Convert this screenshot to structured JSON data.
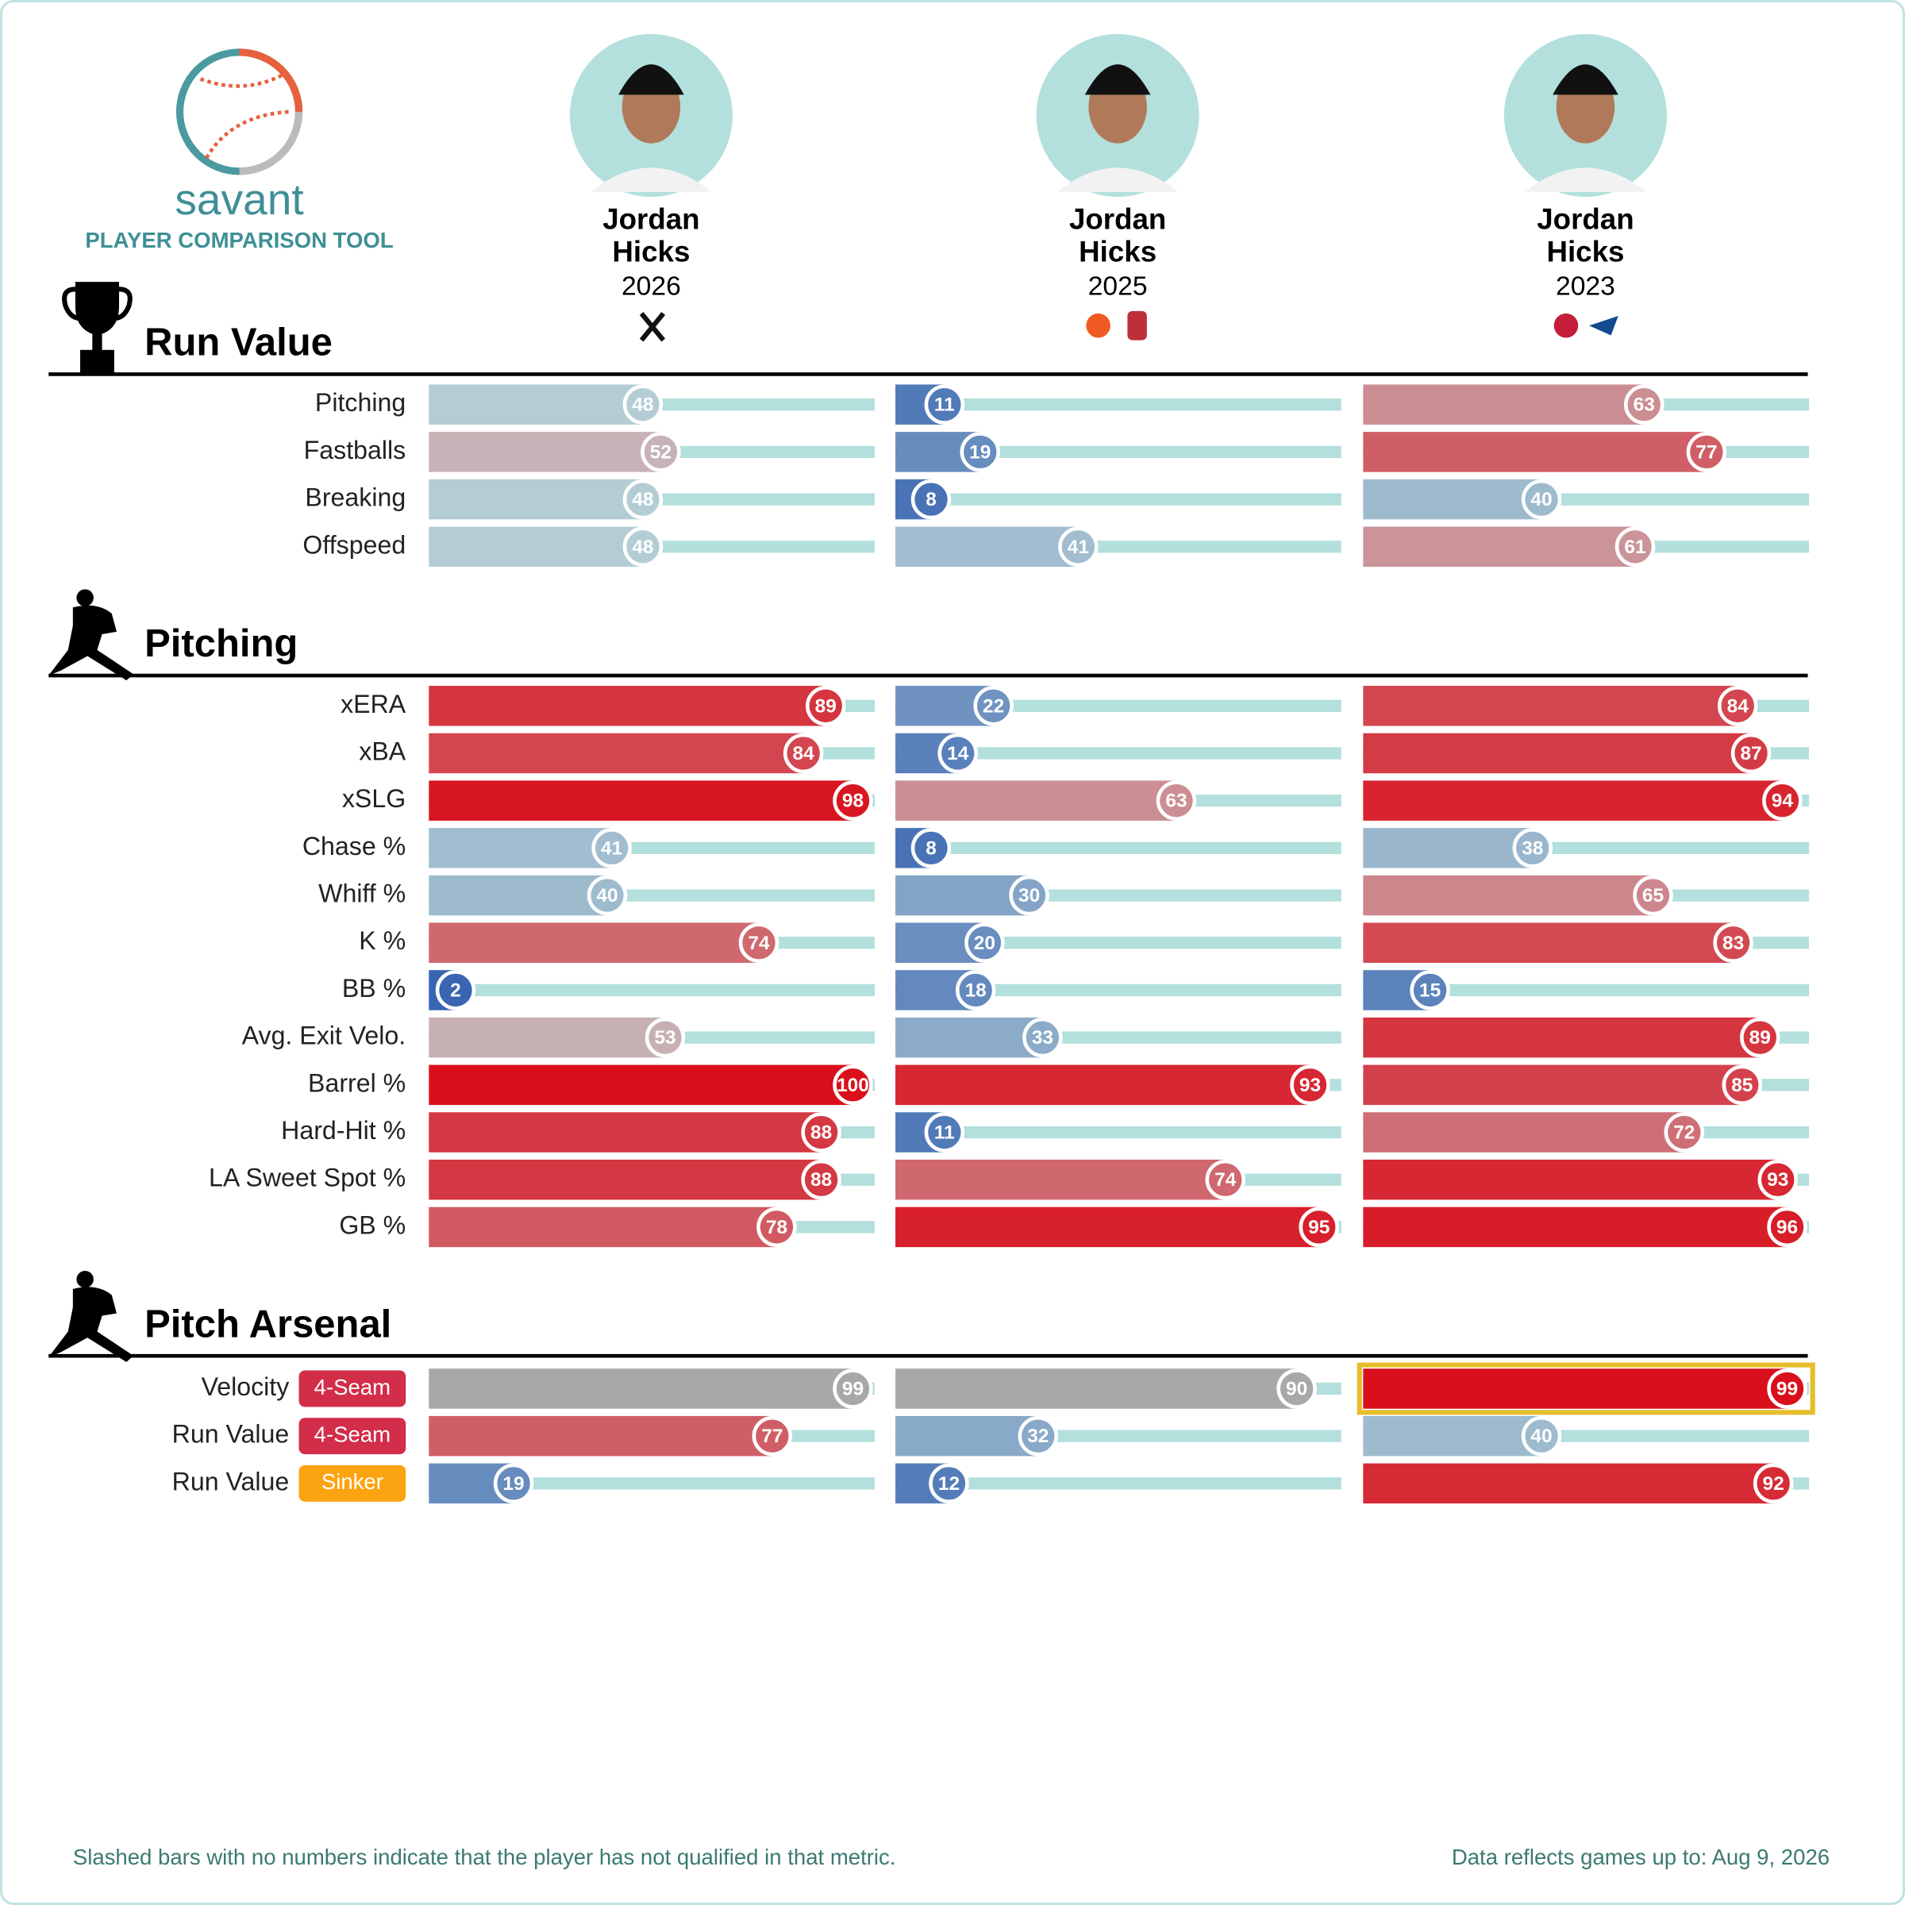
{
  "header": {
    "brand": "savant",
    "subtitle": "PLAYER COMPARISON TOOL"
  },
  "players": [
    {
      "first": "Jordan",
      "last": "Hicks",
      "year": 2026
    },
    {
      "first": "Jordan",
      "last": "Hicks",
      "year": 2025
    },
    {
      "first": "Jordan",
      "last": "Hicks",
      "year": 2023
    }
  ],
  "sections": [
    {
      "title": "Run Value",
      "rows": [
        {
          "label": "Pitching",
          "values": [
            48,
            11,
            63
          ]
        },
        {
          "label": "Fastballs",
          "values": [
            52,
            19,
            77
          ]
        },
        {
          "label": "Breaking",
          "values": [
            48,
            8,
            40
          ]
        },
        {
          "label": "Offspeed",
          "values": [
            48,
            41,
            61
          ]
        }
      ]
    },
    {
      "title": "Pitching",
      "rows": [
        {
          "label": "xERA",
          "values": [
            89,
            22,
            84
          ]
        },
        {
          "label": "xBA",
          "values": [
            84,
            14,
            87
          ]
        },
        {
          "label": "xSLG",
          "values": [
            98,
            63,
            94
          ]
        },
        {
          "label": "Chase %",
          "values": [
            41,
            8,
            38
          ]
        },
        {
          "label": "Whiff %",
          "values": [
            40,
            30,
            65
          ]
        },
        {
          "label": "K %",
          "values": [
            74,
            20,
            83
          ]
        },
        {
          "label": "BB %",
          "values": [
            2,
            18,
            15
          ]
        },
        {
          "label": "Avg. Exit Velo.",
          "values": [
            53,
            33,
            89
          ]
        },
        {
          "label": "Barrel %",
          "values": [
            100,
            93,
            85
          ]
        },
        {
          "label": "Hard-Hit %",
          "values": [
            88,
            11,
            72
          ]
        },
        {
          "label": "LA Sweet Spot %",
          "values": [
            88,
            74,
            93
          ]
        },
        {
          "label": "GB %",
          "values": [
            78,
            95,
            96
          ]
        }
      ]
    },
    {
      "title": "Pitch Arsenal",
      "rows": [
        {
          "label": "Velocity",
          "tag": "4-Seam",
          "tag_color": "#d22d49",
          "values": [
            99,
            90,
            99
          ],
          "colors": [
            "#a8a8a8",
            "#a8a8a8",
            "#d9101c"
          ],
          "highlight": 2
        },
        {
          "label": "Run Value",
          "tag": "4-Seam",
          "tag_color": "#d22d49",
          "values": [
            77,
            32,
            40
          ]
        },
        {
          "label": "Run Value",
          "tag": "Sinker",
          "tag_color": "#fca311",
          "values": [
            19,
            12,
            92
          ]
        }
      ]
    }
  ],
  "footer": {
    "note": "Slashed bars with no numbers indicate that the player has not qualified in that metric.",
    "updated": "Data reflects games up to: Aug 9, 2026"
  }
}
